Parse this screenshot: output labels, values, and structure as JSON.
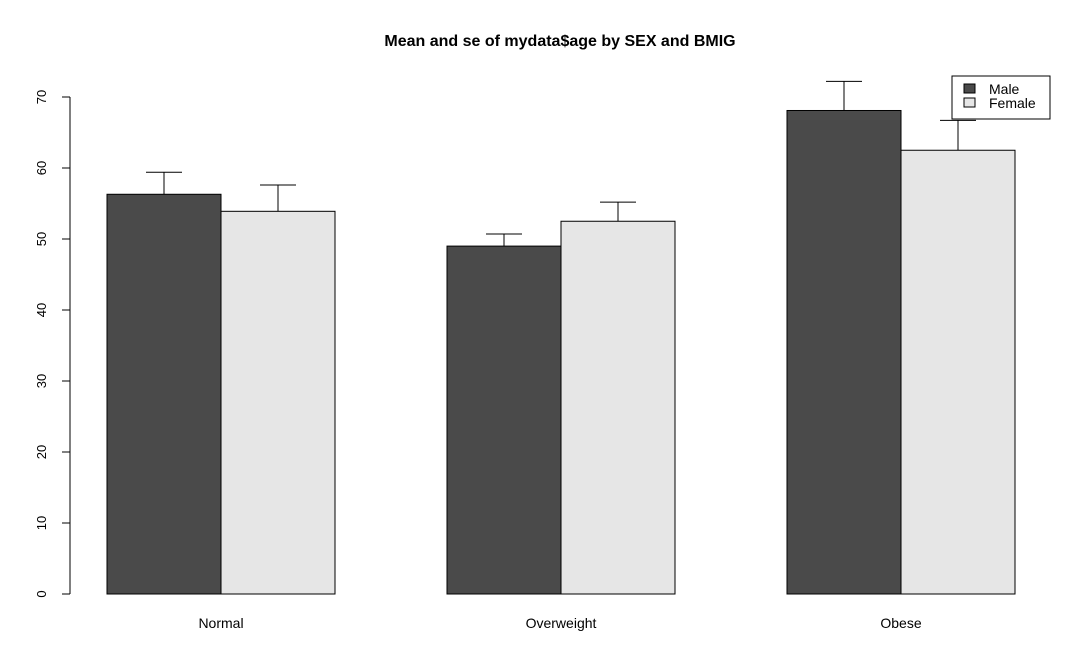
{
  "chart_data": {
    "type": "bar",
    "title": "Mean and se of mydata$age by SEX and BMIG",
    "xlabel": "",
    "ylabel": "",
    "ylim": [
      0,
      70
    ],
    "yticks": [
      0,
      10,
      20,
      30,
      40,
      50,
      60,
      70
    ],
    "categories": [
      "Normal",
      "Overweight",
      "Obese"
    ],
    "series": [
      {
        "name": "Male",
        "color": "#4a4a4a",
        "values": [
          56.3,
          49.0,
          68.1
        ],
        "se": [
          3.1,
          1.7,
          4.1
        ]
      },
      {
        "name": "Female",
        "color": "#e6e6e6",
        "values": [
          53.9,
          52.5,
          62.5
        ],
        "se": [
          3.7,
          2.7,
          4.2
        ]
      }
    ],
    "legend": {
      "position": "top-right",
      "entries": [
        "Male",
        "Female"
      ]
    },
    "grid": false
  }
}
